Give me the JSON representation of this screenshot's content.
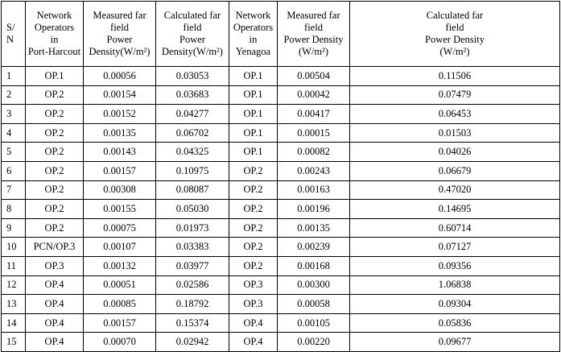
{
  "table": {
    "headers": [
      [
        "S/",
        "N"
      ],
      [
        "Network",
        "Operators",
        "in",
        "Port-Harcout"
      ],
      [
        "Measured far field",
        "Power",
        "Density(W/m²)"
      ],
      [
        "Calculated far",
        "field",
        "Power",
        "Density(W/m²)"
      ],
      [
        "Network",
        "Operators",
        "in",
        "Yenagoa"
      ],
      [
        "Measured far field",
        "Power Density",
        "(W/m²)"
      ],
      [
        "Calculated far",
        "field",
        "Power Density",
        "(W/m²)"
      ]
    ],
    "rows": [
      [
        "1",
        "OP.1",
        "0.00056",
        "0.03053",
        "OP.1",
        "0.00504",
        "0.11506"
      ],
      [
        "2",
        "OP.2",
        "0.00154",
        "0.03683",
        "OP.1",
        "0.00042",
        "0.07479"
      ],
      [
        "3",
        "OP.2",
        "0.00152",
        "0.04277",
        "OP.1",
        "0.00417",
        "0.06453"
      ],
      [
        "4",
        "OP.2",
        "0.00135",
        "0.06702",
        "OP.1",
        "0.00015",
        "0.01503"
      ],
      [
        "5",
        "OP.2",
        "0.00143",
        "0.04325",
        "OP.1",
        "0.00082",
        "0.04026"
      ],
      [
        "6",
        "OP.2",
        "0.00157",
        "0.10975",
        "OP.2",
        "0.00243",
        "0.06679"
      ],
      [
        "7",
        "OP.2",
        "0.00308",
        "0.08087",
        "OP.2",
        "0.00163",
        "0.47020"
      ],
      [
        "8",
        "OP.2",
        "0.00155",
        "0.05030",
        "OP.2",
        "0.00196",
        "0.14695"
      ],
      [
        "9",
        "OP.2",
        "0.00075",
        "0.01973",
        "OP.2",
        "0.00135",
        "0.60714"
      ],
      [
        "10",
        "PCN/OP.3",
        "0.00107",
        "0.03383",
        "OP.2",
        "0.00239",
        "0.07127"
      ],
      [
        "11",
        "OP.3",
        "0.00132",
        "0.03977",
        "OP.2",
        "0.00168",
        "0.09356"
      ],
      [
        "12",
        "OP.4",
        "0.00051",
        "0.02586",
        "OP.3",
        "0.00300",
        "1.06838"
      ],
      [
        "13",
        "OP.4",
        "0.00085",
        "0.18792",
        "OP.3",
        "0.00058",
        "0.09304"
      ],
      [
        "14",
        "OP.4",
        "0.00157",
        "0.15374",
        "OP.4",
        "0.00105",
        "0.05836"
      ],
      [
        "15",
        "OP.4",
        "0.00070",
        "0.02942",
        "OP.4",
        "0.00220",
        "0.09677"
      ]
    ]
  }
}
